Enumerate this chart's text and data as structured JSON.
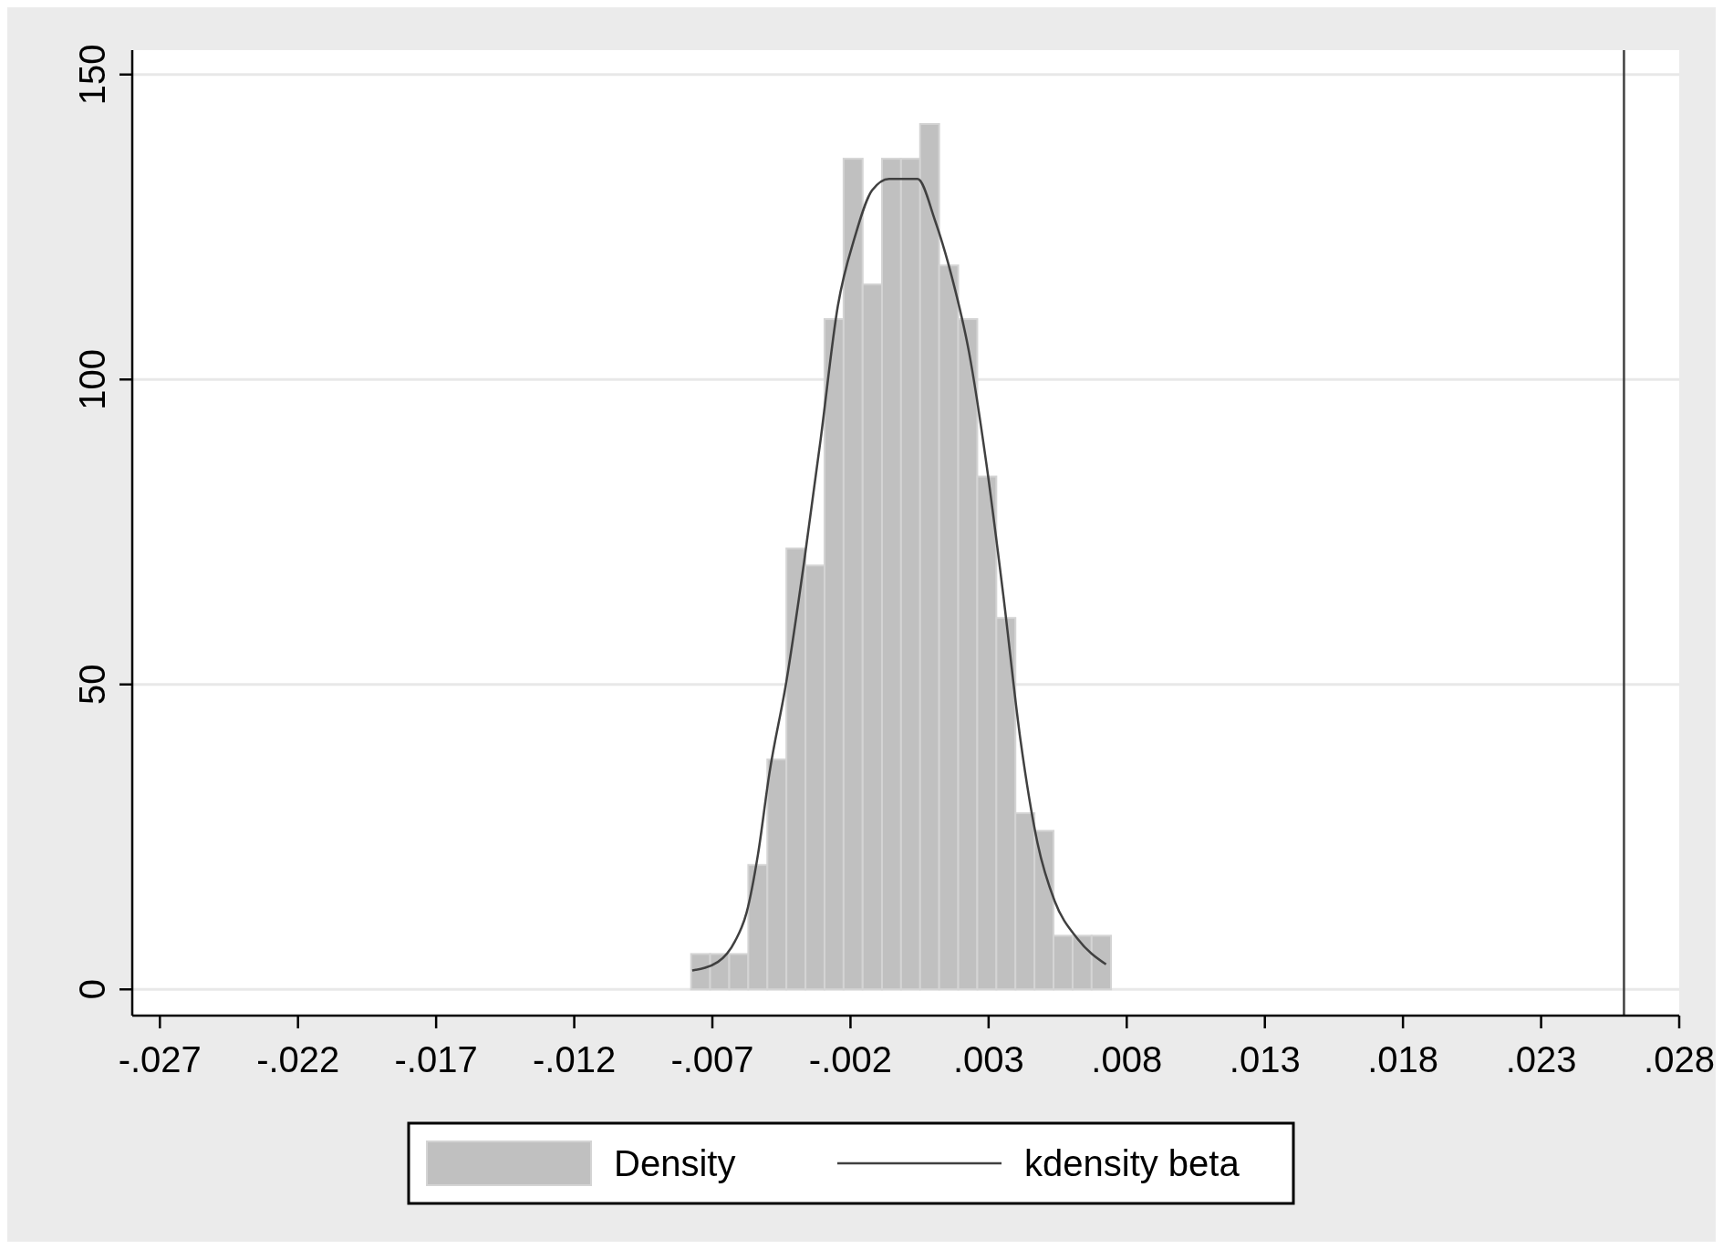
{
  "chart_data": {
    "type": "histogram",
    "bins": [
      -0.00777,
      -0.00708,
      -0.00639,
      -0.0057,
      -0.00501,
      -0.00432,
      -0.00363,
      -0.00294,
      -0.00225,
      -0.00156,
      -0.00086,
      -0.00017,
      0.00052,
      0.00121,
      0.0019,
      0.00259,
      0.00328,
      0.00397,
      0.00466,
      0.00535,
      0.00604,
      0.00673,
      0.00743
    ],
    "series": [
      {
        "name": "Density",
        "color": "#c0c0c0",
        "values": [
          5.8,
          5.8,
          5.8,
          20.4,
          37.7,
          72.3,
          69.5,
          109.9,
          136.2,
          115.6,
          136.2,
          136.2,
          141.9,
          118.7,
          109.9,
          84.1,
          60.9,
          28.9,
          26.0,
          8.8,
          8.8,
          8.8
        ]
      },
      {
        "name": "kdensity beta",
        "type": "line",
        "color": "#404040",
        "x": [
          -0.00773,
          -0.0068,
          -0.00618,
          -0.00576,
          -0.00535,
          -0.00494,
          -0.00432,
          -0.0037,
          -0.00308,
          -0.00246,
          -0.00184,
          -0.00122,
          -0.0006,
          0.00043,
          0.00105,
          0.00167,
          0.00229,
          0.00291,
          0.00353,
          0.00415,
          0.00477,
          0.00539,
          0.00622,
          0.00725
        ],
        "values": [
          3.1,
          4.5,
          7.9,
          12.6,
          22.1,
          35.3,
          50.5,
          69.4,
          90.2,
          112,
          123.4,
          131,
          132.9,
          132.9,
          126.2,
          116.8,
          104.5,
          86.5,
          64.7,
          41,
          24,
          14.5,
          8.3,
          4.1
        ]
      }
    ],
    "xlim": [
      -0.028,
      0.028
    ],
    "xticks": [
      {
        "value": -0.027,
        "label": "-.027"
      },
      {
        "value": -0.022,
        "label": "-.022"
      },
      {
        "value": -0.017,
        "label": "-.017"
      },
      {
        "value": -0.012,
        "label": "-.012"
      },
      {
        "value": -0.007,
        "label": "-.007"
      },
      {
        "value": -0.002,
        "label": "-.002"
      },
      {
        "value": 0.003,
        "label": ".003"
      },
      {
        "value": 0.008,
        "label": ".008"
      },
      {
        "value": 0.013,
        "label": ".013"
      },
      {
        "value": 0.018,
        "label": ".018"
      },
      {
        "value": 0.023,
        "label": ".023"
      },
      {
        "value": 0.028,
        "label": ".028"
      }
    ],
    "ylim": [
      -4.3,
      154
    ],
    "yticks": [
      0,
      50,
      100,
      150
    ],
    "grid": "y",
    "legend": "bottom",
    "ref_lines": [
      {
        "axis": "x",
        "value": 0.026,
        "color": "#404040"
      }
    ]
  }
}
